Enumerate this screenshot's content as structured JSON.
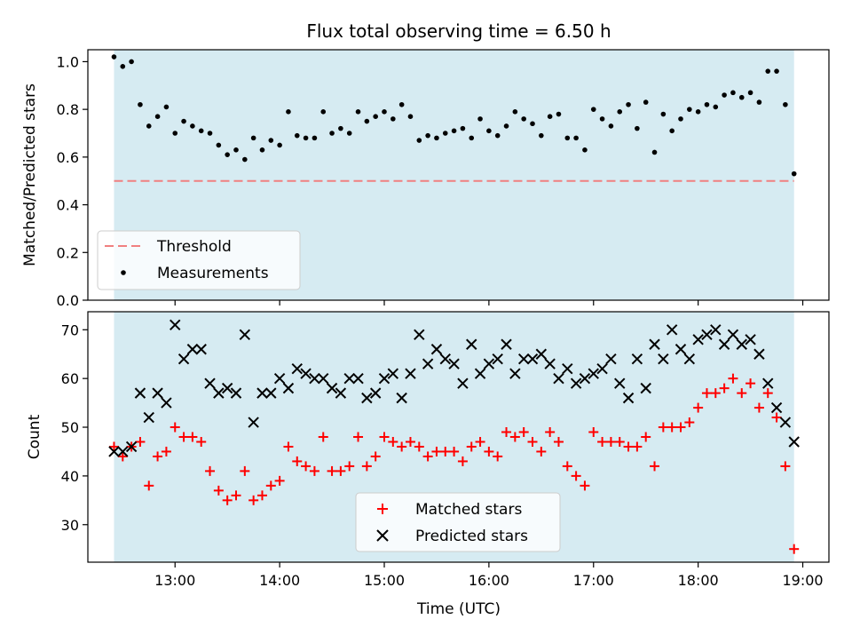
{
  "chart_data": {
    "title": "Flux total observing time = 6.50 h",
    "xlabel": "Time (UTC)",
    "x_ticks": [
      "13:00",
      "14:00",
      "15:00",
      "16:00",
      "17:00",
      "18:00",
      "19:00"
    ],
    "time_range": [
      "12:25",
      "18:55"
    ],
    "shaded_span": [
      "12:25",
      "18:55"
    ],
    "colors": {
      "shade": "#add8e6",
      "threshold": "#f08080",
      "measurements": "#000000",
      "matched": "#ff0000",
      "predicted": "#000000"
    },
    "panels": [
      {
        "type": "scatter",
        "ylabel": "Matched/Predicted stars",
        "ylim": [
          0,
          1.05
        ],
        "y_ticks": [
          "0.0",
          "0.2",
          "0.4",
          "0.6",
          "0.8",
          "1.0"
        ],
        "threshold": 0.5,
        "legend_placement": "lower-left",
        "legend": [
          "Threshold",
          "Measurements"
        ],
        "series": [
          {
            "name": "Measurements",
            "y": [
              1.02,
              0.98,
              1.0,
              0.82,
              0.73,
              0.77,
              0.81,
              0.7,
              0.75,
              0.73,
              0.71,
              0.7,
              0.65,
              0.61,
              0.63,
              0.59,
              0.68,
              0.63,
              0.67,
              0.65,
              0.79,
              0.69,
              0.68,
              0.68,
              0.79,
              0.7,
              0.72,
              0.7,
              0.79,
              0.75,
              0.77,
              0.79,
              0.76,
              0.82,
              0.77,
              0.67,
              0.69,
              0.68,
              0.7,
              0.71,
              0.72,
              0.68,
              0.76,
              0.71,
              0.69,
              0.73,
              0.79,
              0.76,
              0.74,
              0.69,
              0.77,
              0.78,
              0.68,
              0.68,
              0.63,
              0.8,
              0.76,
              0.73,
              0.79,
              0.82,
              0.72,
              0.83,
              0.62,
              0.78,
              0.71,
              0.76,
              0.8,
              0.79,
              0.82,
              0.81,
              0.86,
              0.87,
              0.85,
              0.87,
              0.83,
              0.96,
              0.96,
              0.82,
              0.53
            ]
          }
        ]
      },
      {
        "type": "scatter",
        "ylabel": "Count",
        "ylim": [
          22.3,
          73.7
        ],
        "y_ticks": [
          "30",
          "40",
          "50",
          "60",
          "70"
        ],
        "legend_placement": "lower-center",
        "legend": [
          "Matched stars",
          "Predicted stars"
        ],
        "series": [
          {
            "name": "Matched stars",
            "y": [
              46,
              44,
              46,
              47,
              38,
              44,
              45,
              50,
              48,
              48,
              47,
              41,
              37,
              35,
              36,
              41,
              35,
              36,
              38,
              39,
              46,
              43,
              42,
              41,
              48,
              41,
              41,
              42,
              48,
              42,
              44,
              48,
              47,
              46,
              47,
              46,
              44,
              45,
              45,
              45,
              43,
              46,
              47,
              45,
              44,
              49,
              48,
              49,
              47,
              45,
              49,
              47,
              42,
              40,
              38,
              49,
              47,
              47,
              47,
              46,
              46,
              48,
              42,
              50,
              50,
              50,
              51,
              54,
              57,
              57,
              58,
              60,
              57,
              59,
              54,
              57,
              52,
              42,
              25
            ]
          },
          {
            "name": "Predicted stars",
            "y": [
              45,
              45,
              46,
              57,
              52,
              57,
              55,
              71,
              64,
              66,
              66,
              59,
              57,
              58,
              57,
              69,
              51,
              57,
              57,
              60,
              58,
              62,
              61,
              60,
              60,
              58,
              57,
              60,
              60,
              56,
              57,
              60,
              61,
              56,
              61,
              69,
              63,
              66,
              64,
              63,
              59,
              67,
              61,
              63,
              64,
              67,
              61,
              64,
              64,
              65,
              63,
              60,
              62,
              59,
              60,
              61,
              62,
              64,
              59,
              56,
              64,
              58,
              67,
              64,
              70,
              66,
              64,
              68,
              69,
              70,
              67,
              69,
              67,
              68,
              65,
              59,
              54,
              51,
              47
            ]
          }
        ]
      }
    ]
  }
}
